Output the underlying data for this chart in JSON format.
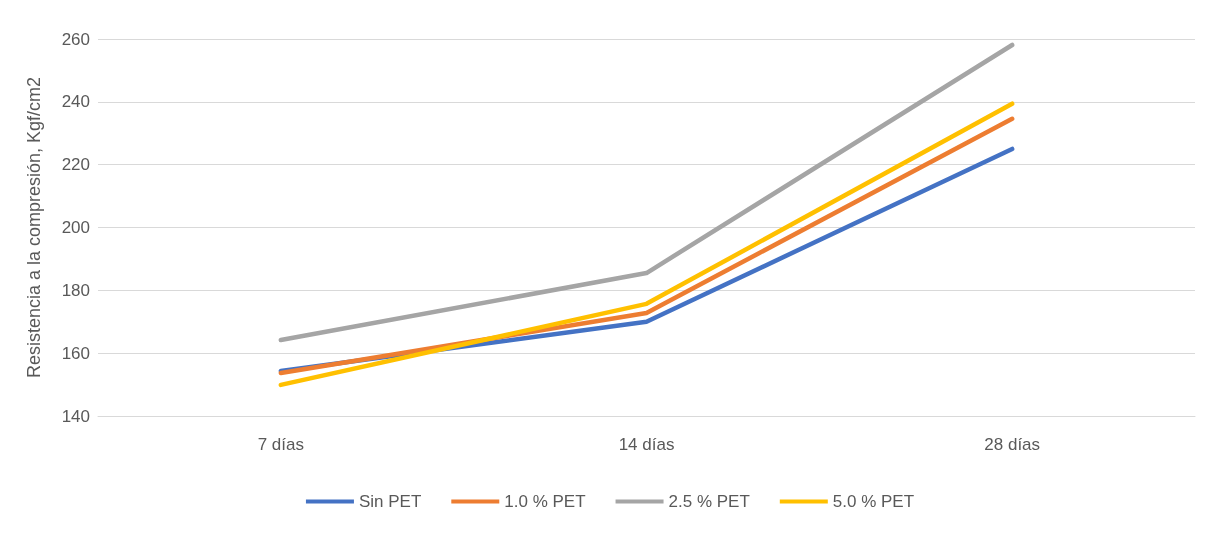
{
  "chart_data": {
    "type": "line",
    "ylabel": "Resistencia a la compresión, Kgf/cm2",
    "categories": [
      "7 días",
      "14 días",
      "28 días"
    ],
    "series": [
      {
        "name": "Sin PET",
        "color": "#4472c4",
        "values": [
          154.3,
          170,
          225
        ]
      },
      {
        "name": "1.0 % PET",
        "color": "#ed7d31",
        "values": [
          153.7,
          172.8,
          234.6
        ]
      },
      {
        "name": "2.5 % PET",
        "color": "#a5a5a5",
        "values": [
          164.2,
          185.5,
          258.1
        ]
      },
      {
        "name": "5.0 % PET",
        "color": "#ffc000",
        "values": [
          149.9,
          175.7,
          239.4
        ]
      }
    ],
    "ylim": [
      140,
      260
    ],
    "yticks": [
      140,
      160,
      180,
      200,
      220,
      240,
      260
    ],
    "grid": "y",
    "legend": "bottom",
    "marker": "none",
    "line_style": "solid"
  }
}
